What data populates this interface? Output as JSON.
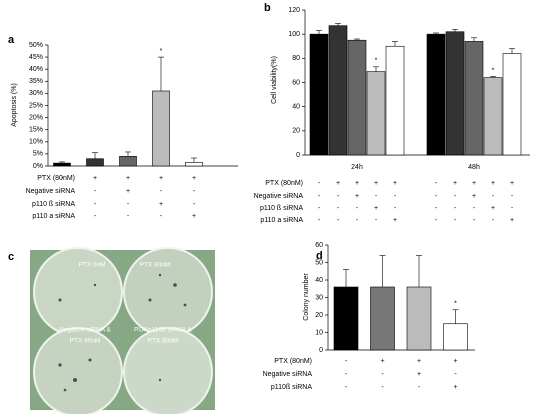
{
  "chart_data": [
    {
      "type": "bar",
      "panel": "a",
      "y_label": "Apoptosis (%)",
      "values": [
        1.2,
        3,
        4,
        31,
        1.5
      ],
      "errors": [
        0.5,
        2.5,
        1.8,
        14,
        1.8
      ],
      "colors": [
        "#000000",
        "#333333",
        "#666666",
        "#bbbbbb",
        "#ffffff"
      ],
      "significance": [
        null,
        null,
        null,
        "*",
        null
      ],
      "ylim": [
        0,
        50
      ],
      "yticks": [
        {
          "value": 0,
          "label": "0%"
        },
        {
          "value": 5,
          "label": "5%"
        },
        {
          "value": 10,
          "label": "10%"
        },
        {
          "value": 15,
          "label": "15%"
        },
        {
          "value": 20,
          "label": "20%"
        },
        {
          "value": 25,
          "label": "25%"
        },
        {
          "value": 30,
          "label": "30%"
        },
        {
          "value": 35,
          "label": "35%"
        },
        {
          "value": 40,
          "label": "40%"
        },
        {
          "value": 45,
          "label": "45%"
        },
        {
          "value": 50,
          "label": "50%"
        }
      ],
      "conditions": [
        {
          "label": "PTX (80nM)",
          "values": [
            "-",
            "+",
            "+",
            "+",
            "+"
          ]
        },
        {
          "label": "Negative siRNA",
          "values": [
            "-",
            "-",
            "+",
            "-",
            "-"
          ]
        },
        {
          "label": "p110 ß siRNA",
          "values": [
            "-",
            "-",
            "-",
            "+",
            "-"
          ]
        },
        {
          "label": "p110 a siRNA",
          "values": [
            "-",
            "-",
            "-",
            "-",
            "+"
          ]
        }
      ]
    },
    {
      "type": "grouped-bar",
      "panel": "b",
      "y_label": "Cell viability(%)",
      "categories": [
        "24h",
        "48h"
      ],
      "series": [
        {
          "color": "#000000",
          "values": [
            100,
            100
          ],
          "errors": [
            3,
            1
          ],
          "significance": [
            null,
            null
          ]
        },
        {
          "color": "#333333",
          "values": [
            107,
            102
          ],
          "errors": [
            2,
            2
          ],
          "significance": [
            null,
            null
          ]
        },
        {
          "color": "#666666",
          "values": [
            95,
            94
          ],
          "errors": [
            1,
            3
          ],
          "significance": [
            null,
            null
          ]
        },
        {
          "color": "#bbbbbb",
          "values": [
            69,
            64
          ],
          "errors": [
            4,
            1
          ],
          "significance": [
            "*",
            "*"
          ]
        },
        {
          "color": "#ffffff",
          "values": [
            90,
            84
          ],
          "errors": [
            4,
            4
          ],
          "significance": [
            null,
            null
          ]
        }
      ],
      "ylim": [
        0,
        120
      ],
      "yticks": [
        0,
        20,
        40,
        60,
        80,
        100,
        120
      ],
      "conditions": [
        {
          "label": "PTX (80nM)",
          "values": [
            "-",
            "+",
            "+",
            "+",
            "+",
            "-",
            "+",
            "+",
            "+",
            "+"
          ]
        },
        {
          "label": "Negative siRNA",
          "values": [
            "-",
            "-",
            "+",
            "-",
            "-",
            "-",
            "-",
            "+",
            "-",
            "-"
          ]
        },
        {
          "label": "p110 ß siRNA",
          "values": [
            "-",
            "-",
            "-",
            "+",
            "-",
            "-",
            "-",
            "-",
            "+",
            "-"
          ]
        },
        {
          "label": "p110 a siRNA",
          "values": [
            "-",
            "-",
            "-",
            "-",
            "+",
            "-",
            "-",
            "-",
            "-",
            "+"
          ]
        }
      ]
    },
    {
      "type": "bar",
      "panel": "d",
      "y_label": "Colony number",
      "values": [
        36,
        36,
        36,
        15
      ],
      "errors": [
        10,
        18,
        18,
        8
      ],
      "colors": [
        "#000000",
        "#777777",
        "#bbbbbb",
        "#ffffff"
      ],
      "significance": [
        null,
        null,
        null,
        "*"
      ],
      "ylim": [
        0,
        60
      ],
      "yticks": [
        0,
        10,
        20,
        30,
        40,
        50,
        60
      ],
      "conditions": [
        {
          "label": "PTX (80nM)",
          "values": [
            "-",
            "+",
            "+",
            "+"
          ]
        },
        {
          "label": "Negative siRNA",
          "values": [
            "-",
            "-",
            "+",
            "-"
          ]
        },
        {
          "label": "p110ß siRNA",
          "values": [
            "-",
            "-",
            "-",
            "+"
          ]
        }
      ]
    }
  ],
  "photo": {
    "panel": "c",
    "labels": [
      [
        "PTX 0nM"
      ],
      [
        "PTX 80nM"
      ],
      [
        "Negative siRNA &",
        "PTX 80nM"
      ],
      [
        "PI3Kp110ß siRNA &",
        "PTX 80nM"
      ]
    ]
  }
}
